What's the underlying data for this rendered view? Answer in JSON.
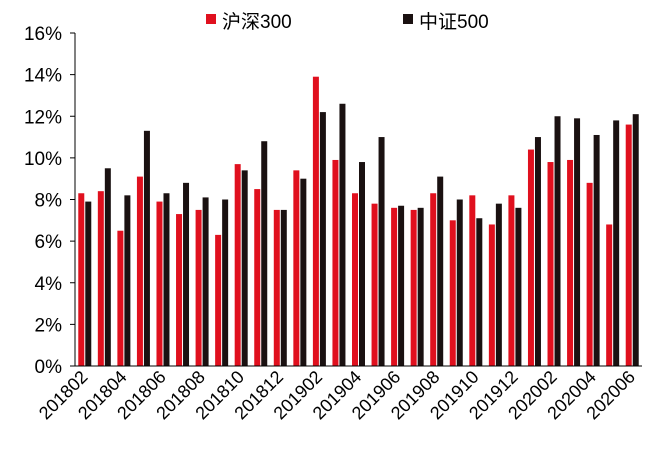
{
  "chart_data": {
    "type": "bar",
    "title": "",
    "xlabel": "",
    "ylabel": "",
    "ylim": [
      0,
      16
    ],
    "yticks": [
      "0%",
      "2%",
      "4%",
      "6%",
      "8%",
      "10%",
      "12%",
      "14%",
      "16%"
    ],
    "legend_position": "top-center",
    "grid": false,
    "categories": [
      "201802",
      "201803",
      "201804",
      "201805",
      "201806",
      "201807",
      "201808",
      "201809",
      "201810",
      "201811",
      "201812",
      "201901",
      "201902",
      "201903",
      "201904",
      "201905",
      "201906",
      "201907",
      "201908",
      "201909",
      "201910",
      "201911",
      "201912",
      "202001",
      "202002",
      "202003",
      "202004",
      "202005",
      "202006"
    ],
    "xtick_labels": [
      "201802",
      "201804",
      "201806",
      "201808",
      "201810",
      "201812",
      "201902",
      "201904",
      "201906",
      "201908",
      "201910",
      "201912",
      "202002",
      "202004",
      "202006"
    ],
    "series": [
      {
        "name": "沪深300",
        "color": "#e0101e",
        "values": [
          8.3,
          8.4,
          6.5,
          9.1,
          7.9,
          7.3,
          7.5,
          6.3,
          9.7,
          8.5,
          7.5,
          9.4,
          13.9,
          9.9,
          8.3,
          7.8,
          7.6,
          7.5,
          8.3,
          7.0,
          8.2,
          6.8,
          8.2,
          10.4,
          9.8,
          9.9,
          8.8,
          6.8,
          11.6
        ]
      },
      {
        "name": "中证500",
        "color": "#1a1111",
        "values": [
          7.9,
          9.5,
          8.2,
          11.3,
          8.3,
          8.8,
          8.1,
          8.0,
          9.4,
          10.8,
          7.5,
          9.0,
          12.2,
          12.6,
          9.8,
          11.0,
          7.7,
          7.6,
          9.1,
          8.0,
          7.1,
          7.8,
          7.6,
          11.0,
          12.0,
          11.9,
          11.1,
          11.8,
          12.1
        ]
      }
    ]
  }
}
